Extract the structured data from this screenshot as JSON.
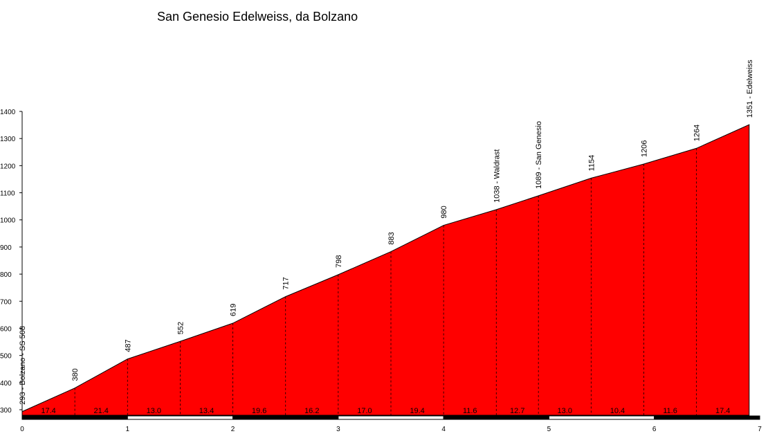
{
  "chart_data": {
    "type": "area",
    "title": "San Genesio Edelweiss, da Bolzano",
    "xlabel": "",
    "ylabel": "",
    "xlim": [
      0,
      7
    ],
    "ylim": [
      280,
      1400
    ],
    "x_ticks": [
      "0",
      "1",
      "2",
      "3",
      "4",
      "5",
      "6",
      "7"
    ],
    "y_ticks": [
      "300",
      "400",
      "500",
      "600",
      "700",
      "800",
      "900",
      "1000",
      "1100",
      "1200",
      "1300",
      "1400"
    ],
    "fill_color": "#ff0000",
    "series": [
      {
        "x": [
          0,
          0.5,
          1.0,
          1.5,
          2.0,
          2.5,
          3.0,
          3.5,
          4.0,
          4.5,
          4.9,
          5.4,
          5.9,
          6.4,
          6.9
        ],
        "y": [
          293,
          380,
          487,
          552,
          619,
          717,
          798,
          883,
          980,
          1038,
          1089,
          1154,
          1206,
          1264,
          1351
        ]
      }
    ],
    "point_labels": [
      "293 - Bolzano - SS 508",
      "380",
      "487",
      "552",
      "619",
      "717",
      "798",
      "883",
      "980",
      "1038 - Waldrast",
      "1089 - San Genesio",
      "1154",
      "1206",
      "1264",
      "1351 - Edelweiss"
    ],
    "segment_gradients": [
      "17.4",
      "21.4",
      "13.0",
      "13.4",
      "19.6",
      "16.2",
      "17.0",
      "19.4",
      "11.6",
      "12.7",
      "13.0",
      "10.4",
      "11.6",
      "17.4"
    ]
  }
}
